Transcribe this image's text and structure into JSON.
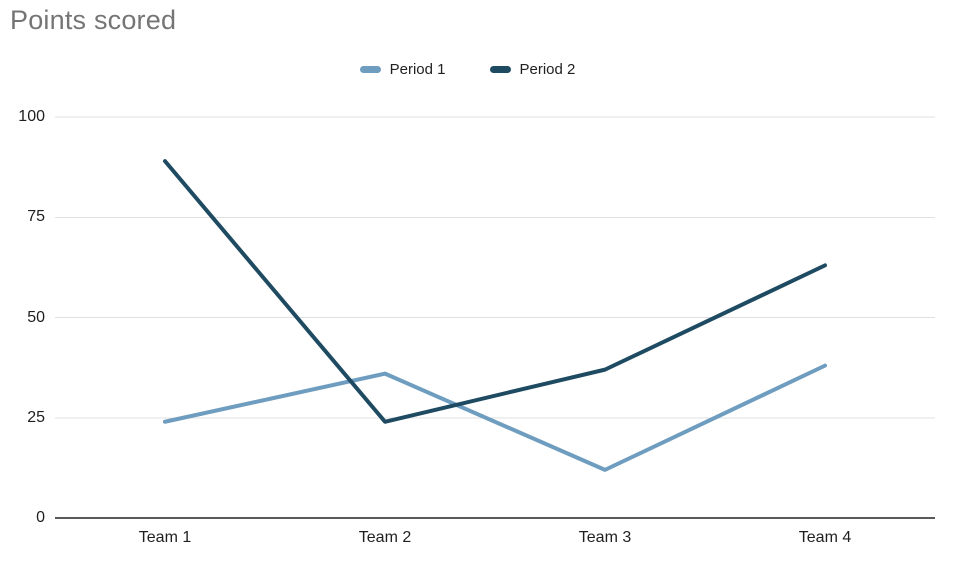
{
  "chart_data": {
    "type": "line",
    "title": "Points scored",
    "categories": [
      "Team 1",
      "Team 2",
      "Team 3",
      "Team 4"
    ],
    "series": [
      {
        "name": "Period 1",
        "color": "#6e9dc0",
        "values": [
          24,
          36,
          12,
          38
        ]
      },
      {
        "name": "Period 2",
        "color": "#1e4b62",
        "values": [
          89,
          24,
          37,
          63
        ]
      }
    ],
    "xlabel": "",
    "ylabel": "",
    "ylim": [
      0,
      100
    ],
    "yticks": [
      0,
      25,
      50,
      75,
      100
    ],
    "grid": "horizontal",
    "legend_position": "top"
  },
  "colors": {
    "title_text": "#757575",
    "axis_text": "#1f1f1f",
    "legend_text": "#212121",
    "gridline": "#e0e0e0",
    "axis_line": "#595959",
    "background": "#ffffff"
  }
}
